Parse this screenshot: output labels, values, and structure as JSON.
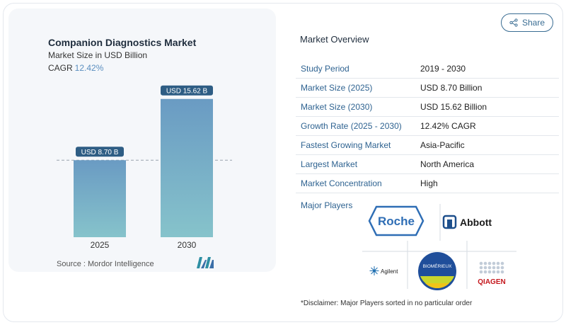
{
  "chart": {
    "title": "Companion Diagnostics Market",
    "subtitle": "Market Size in USD Billion",
    "cagr_label": "CAGR",
    "cagr_value": "12.42%",
    "source": "Source :  Mordor Intelligence"
  },
  "chart_data": {
    "type": "bar",
    "categories": [
      "2025",
      "2030"
    ],
    "values": [
      8.7,
      15.62
    ],
    "data_labels": [
      "USD 8.70 B",
      "USD 15.62 B"
    ],
    "title": "Companion Diagnostics Market",
    "subtitle": "Market Size in USD Billion",
    "ylim": [
      0,
      16
    ],
    "reference_line": 8.7,
    "colors": {
      "bar_top": "#6a9bc3",
      "bar_bottom": "#86c3cb",
      "label_bg": "#2e5d84"
    }
  },
  "share": {
    "label": "Share",
    "icon": "share-icon"
  },
  "overview": {
    "title": "Market Overview",
    "rows": [
      {
        "key": "Study Period",
        "value": "2019 - 2030"
      },
      {
        "key": "Market Size (2025)",
        "value": "USD 8.70 Billion"
      },
      {
        "key": "Market Size (2030)",
        "value": "USD 15.62 Billion"
      },
      {
        "key": "Growth Rate (2025 - 2030)",
        "value": "12.42% CAGR"
      },
      {
        "key": "Fastest Growing Market",
        "value": "Asia-Pacific"
      },
      {
        "key": "Largest Market",
        "value": "North America"
      },
      {
        "key": "Market Concentration",
        "value": "High"
      }
    ],
    "players_label": "Major Players",
    "players": [
      "Roche",
      "Abbott",
      "Agilent",
      "BIOMÉRIEUX",
      "QIAGEN"
    ],
    "disclaimer": "*Disclaimer: Major Players sorted in no particular order"
  }
}
